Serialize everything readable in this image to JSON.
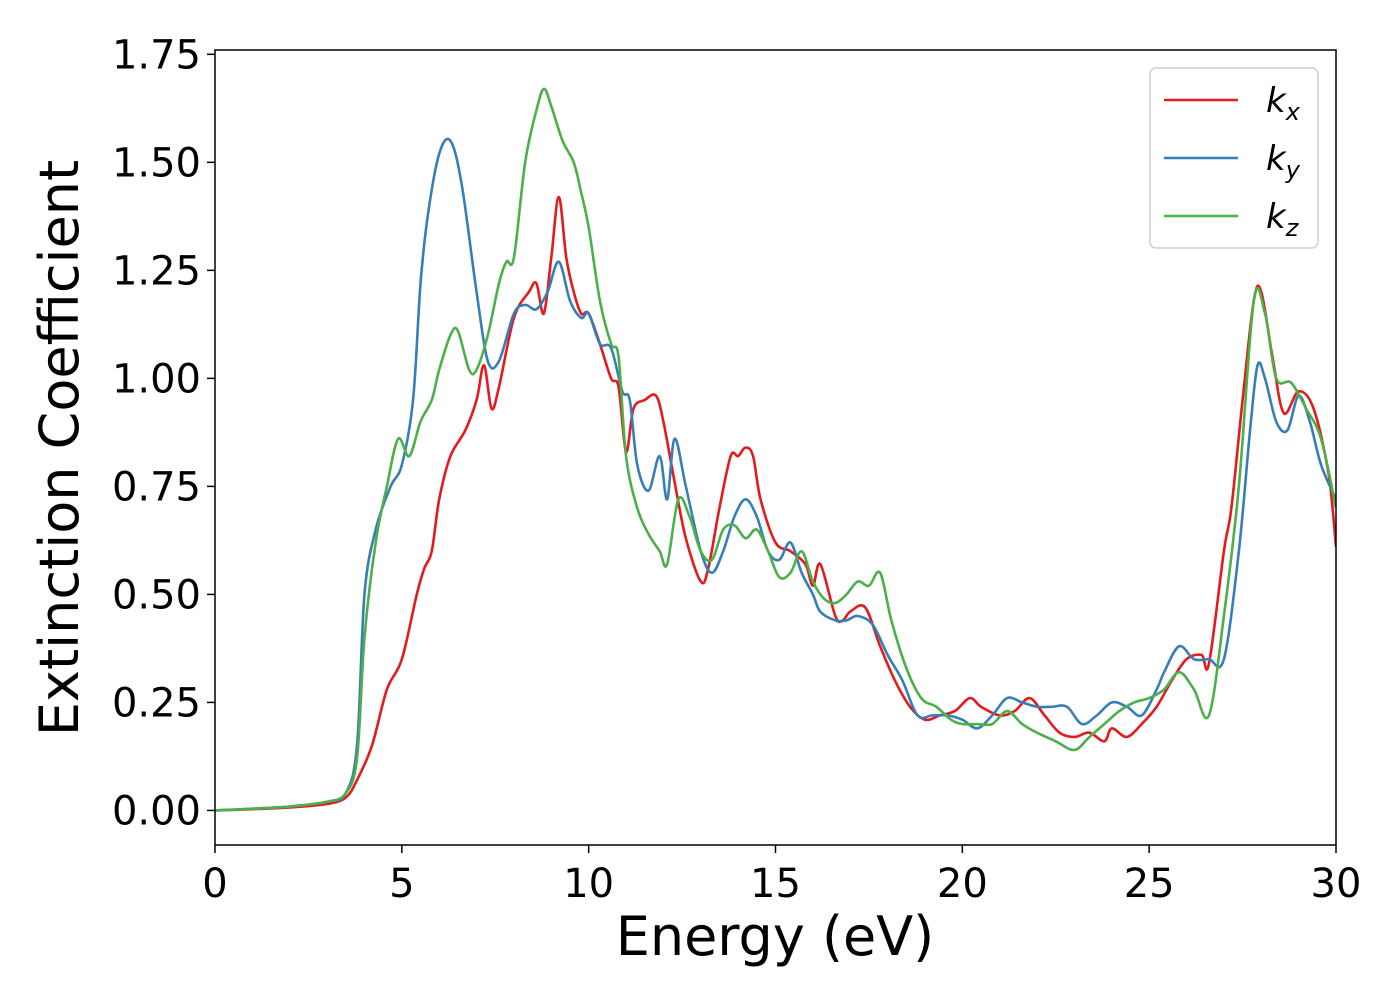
{
  "chart_data": {
    "type": "line",
    "xlabel": "Energy (eV)",
    "ylabel": "Extinction Coefficient",
    "xlim": [
      0,
      30
    ],
    "ylim": [
      -0.08,
      1.76
    ],
    "xticks": [
      0,
      5,
      10,
      15,
      20,
      25,
      30
    ],
    "xtick_labels": [
      "0",
      "5",
      "10",
      "15",
      "20",
      "25",
      "30"
    ],
    "yticks": [
      0.0,
      0.25,
      0.5,
      0.75,
      1.0,
      1.25,
      1.5,
      1.75
    ],
    "ytick_labels": [
      "0.00",
      "0.25",
      "0.50",
      "0.75",
      "1.00",
      "1.25",
      "1.50",
      "1.75"
    ],
    "grid": false,
    "legend_position": "top-right",
    "series": [
      {
        "name": "k_x",
        "label_main": "k",
        "label_sub": "x",
        "color": "#e41a1c",
        "x": [
          0,
          1,
          2,
          3,
          3.5,
          3.8,
          4.2,
          4.6,
          5.0,
          5.4,
          5.6,
          5.8,
          6.0,
          6.3,
          6.7,
          7.0,
          7.2,
          7.4,
          7.6,
          8.0,
          8.4,
          8.6,
          8.8,
          9.0,
          9.2,
          9.4,
          9.6,
          9.8,
          10.0,
          10.3,
          10.6,
          10.8,
          11.0,
          11.2,
          11.5,
          11.8,
          12.0,
          12.3,
          12.6,
          13.0,
          13.2,
          13.5,
          13.8,
          14.0,
          14.2,
          14.4,
          14.6,
          15.0,
          15.4,
          15.8,
          16.0,
          16.2,
          16.6,
          16.8,
          17.0,
          17.4,
          17.8,
          18.2,
          18.6,
          19.0,
          19.4,
          19.8,
          20.2,
          20.5,
          21.0,
          21.4,
          21.8,
          22.2,
          22.6,
          23.0,
          23.4,
          23.8,
          24.0,
          24.4,
          24.8,
          25.2,
          25.6,
          26.0,
          26.4,
          26.6,
          27.0,
          27.2,
          27.5,
          27.8,
          28.0,
          28.3,
          28.6,
          29.0,
          29.4,
          29.8,
          30.0
        ],
        "y": [
          0.0,
          0.003,
          0.007,
          0.015,
          0.03,
          0.07,
          0.15,
          0.28,
          0.35,
          0.5,
          0.56,
          0.6,
          0.72,
          0.82,
          0.88,
          0.95,
          1.03,
          0.93,
          0.98,
          1.14,
          1.2,
          1.22,
          1.15,
          1.28,
          1.42,
          1.28,
          1.2,
          1.15,
          1.15,
          1.08,
          1.0,
          0.98,
          0.83,
          0.93,
          0.95,
          0.96,
          0.9,
          0.76,
          0.63,
          0.53,
          0.56,
          0.7,
          0.82,
          0.82,
          0.84,
          0.82,
          0.72,
          0.62,
          0.6,
          0.57,
          0.52,
          0.57,
          0.45,
          0.44,
          0.46,
          0.47,
          0.38,
          0.3,
          0.24,
          0.21,
          0.22,
          0.23,
          0.26,
          0.24,
          0.22,
          0.23,
          0.26,
          0.22,
          0.18,
          0.17,
          0.18,
          0.16,
          0.19,
          0.17,
          0.2,
          0.24,
          0.3,
          0.35,
          0.36,
          0.34,
          0.6,
          0.7,
          0.95,
          1.18,
          1.2,
          1.05,
          0.92,
          0.97,
          0.93,
          0.78,
          0.61
        ]
      },
      {
        "name": "k_y",
        "label_main": "k",
        "label_sub": "y",
        "color": "#377eb8",
        "x": [
          0,
          1,
          2,
          3,
          3.5,
          3.8,
          4.0,
          4.3,
          4.7,
          5.0,
          5.3,
          5.5,
          5.7,
          6.0,
          6.3,
          6.6,
          7.0,
          7.3,
          7.6,
          8.0,
          8.3,
          8.6,
          8.9,
          9.2,
          9.5,
          9.8,
          10.0,
          10.3,
          10.6,
          10.9,
          11.1,
          11.3,
          11.6,
          11.9,
          12.1,
          12.3,
          12.6,
          13.0,
          13.3,
          13.6,
          13.9,
          14.2,
          14.5,
          14.8,
          15.1,
          15.4,
          15.7,
          16.0,
          16.2,
          16.6,
          16.9,
          17.2,
          17.6,
          18.0,
          18.4,
          18.8,
          19.2,
          19.6,
          20.0,
          20.4,
          20.8,
          21.2,
          21.6,
          22.0,
          22.4,
          22.8,
          23.2,
          23.6,
          24.0,
          24.4,
          24.8,
          25.2,
          25.4,
          25.8,
          26.2,
          26.6,
          27.0,
          27.4,
          27.7,
          27.9,
          28.1,
          28.4,
          28.7,
          29.0,
          29.3,
          29.6,
          30.0
        ],
        "y": [
          0.0,
          0.004,
          0.009,
          0.02,
          0.04,
          0.15,
          0.5,
          0.65,
          0.75,
          0.8,
          0.95,
          1.22,
          1.38,
          1.52,
          1.55,
          1.45,
          1.2,
          1.04,
          1.04,
          1.15,
          1.17,
          1.16,
          1.2,
          1.27,
          1.18,
          1.14,
          1.15,
          1.08,
          1.07,
          0.97,
          0.95,
          0.8,
          0.74,
          0.82,
          0.72,
          0.86,
          0.75,
          0.6,
          0.55,
          0.6,
          0.68,
          0.72,
          0.68,
          0.6,
          0.58,
          0.62,
          0.55,
          0.5,
          0.46,
          0.44,
          0.44,
          0.45,
          0.43,
          0.36,
          0.3,
          0.22,
          0.22,
          0.22,
          0.21,
          0.19,
          0.22,
          0.26,
          0.25,
          0.24,
          0.24,
          0.24,
          0.2,
          0.22,
          0.25,
          0.24,
          0.22,
          0.28,
          0.32,
          0.38,
          0.35,
          0.35,
          0.35,
          0.6,
          0.88,
          1.03,
          1.0,
          0.9,
          0.88,
          0.96,
          0.9,
          0.8,
          0.72
        ]
      },
      {
        "name": "k_z",
        "label_main": "k",
        "label_sub": "z",
        "color": "#4daf4a",
        "x": [
          0,
          1,
          2,
          3,
          3.5,
          3.8,
          4.0,
          4.3,
          4.6,
          4.9,
          5.2,
          5.5,
          5.8,
          6.0,
          6.3,
          6.5,
          6.8,
          7.0,
          7.3,
          7.6,
          7.8,
          8.0,
          8.3,
          8.6,
          8.8,
          9.0,
          9.3,
          9.6,
          9.8,
          10.0,
          10.3,
          10.6,
          10.8,
          11.0,
          11.3,
          11.6,
          11.9,
          12.1,
          12.4,
          12.7,
          13.0,
          13.3,
          13.6,
          13.9,
          14.2,
          14.5,
          14.8,
          15.1,
          15.4,
          15.7,
          16.0,
          16.3,
          16.6,
          16.9,
          17.2,
          17.5,
          17.8,
          18.1,
          18.5,
          18.9,
          19.3,
          19.7,
          20.0,
          20.4,
          20.8,
          21.2,
          21.6,
          22.0,
          22.5,
          23.0,
          23.4,
          23.8,
          24.2,
          24.6,
          25.0,
          25.4,
          25.8,
          26.2,
          26.6,
          27.0,
          27.4,
          27.8,
          28.1,
          28.4,
          28.8,
          29.2,
          29.6,
          30.0
        ],
        "y": [
          0.0,
          0.004,
          0.009,
          0.02,
          0.04,
          0.12,
          0.4,
          0.62,
          0.75,
          0.86,
          0.82,
          0.9,
          0.95,
          1.02,
          1.1,
          1.11,
          1.02,
          1.02,
          1.1,
          1.22,
          1.27,
          1.28,
          1.5,
          1.62,
          1.67,
          1.63,
          1.55,
          1.5,
          1.43,
          1.35,
          1.18,
          1.08,
          1.05,
          0.82,
          0.7,
          0.64,
          0.6,
          0.57,
          0.72,
          0.68,
          0.6,
          0.58,
          0.65,
          0.66,
          0.63,
          0.65,
          0.6,
          0.54,
          0.55,
          0.6,
          0.53,
          0.49,
          0.48,
          0.5,
          0.53,
          0.52,
          0.55,
          0.44,
          0.33,
          0.26,
          0.24,
          0.21,
          0.2,
          0.2,
          0.2,
          0.23,
          0.2,
          0.18,
          0.16,
          0.14,
          0.17,
          0.2,
          0.23,
          0.25,
          0.26,
          0.28,
          0.32,
          0.28,
          0.22,
          0.45,
          0.75,
          1.18,
          1.15,
          1.0,
          0.99,
          0.93,
          0.86,
          0.7
        ]
      }
    ]
  }
}
